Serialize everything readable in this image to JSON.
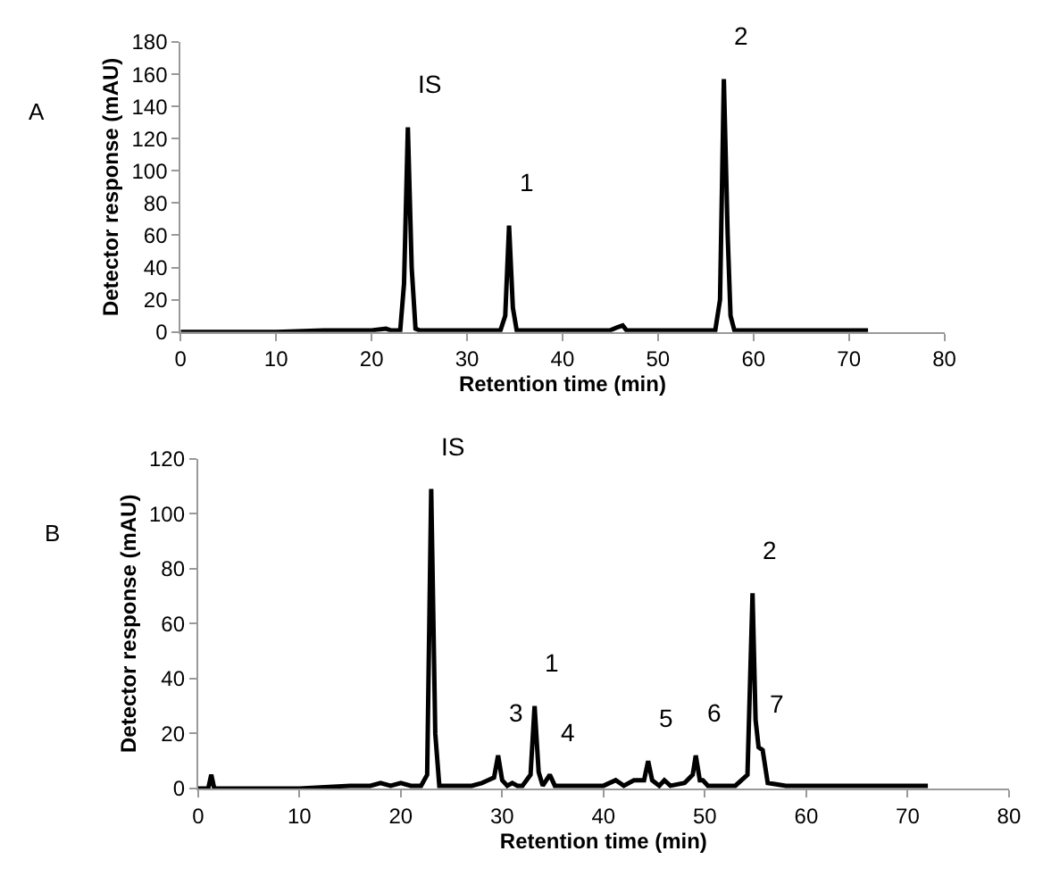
{
  "chart_data": [
    {
      "type": "line",
      "xlabel": "Retention time (min)",
      "ylabel": "Detector response (mAU)",
      "marker": "none",
      "line_style": "solid",
      "xlim": [
        0,
        80
      ],
      "xticks": [
        0,
        10,
        20,
        30,
        40,
        50,
        60,
        70,
        80
      ],
      "ylim": [
        0,
        180
      ],
      "yticks": [
        0,
        20,
        40,
        60,
        80,
        100,
        120,
        140,
        160,
        180
      ],
      "x": [
        0,
        5,
        10,
        15,
        18,
        20,
        21.5,
        22,
        23,
        23.4,
        23.8,
        24.2,
        24.6,
        25,
        27.5,
        30,
        31,
        32,
        33.5,
        34,
        34.4,
        34.8,
        35.2,
        36,
        40,
        45,
        45.8,
        46.3,
        46.7,
        47.5,
        50,
        51,
        55,
        56,
        56.5,
        56.9,
        57.3,
        57.6,
        58,
        60,
        65,
        72
      ],
      "series": [
        {
          "color": "#000000",
          "values": [
            0,
            0,
            0,
            1,
            1,
            1,
            2,
            1,
            1,
            30,
            127,
            40,
            2,
            1,
            1,
            1,
            1,
            1,
            1,
            10,
            66,
            15,
            1,
            1,
            1,
            1,
            3,
            4,
            1,
            1,
            1,
            1,
            1,
            1,
            20,
            157,
            60,
            10,
            1,
            1,
            1,
            1
          ]
        }
      ],
      "annotations": [
        "A",
        {
          "text": "IS",
          "x": 23.8,
          "y": 127
        },
        {
          "text": "1",
          "x": 34.4,
          "y": 66
        },
        {
          "text": "2",
          "x": 56.9,
          "y": 157
        }
      ]
    },
    {
      "type": "line",
      "xlabel": "Retention time (min)",
      "ylabel": "Detector response (mAU)",
      "marker": "none",
      "line_style": "solid",
      "xlim": [
        0,
        80
      ],
      "xticks": [
        0,
        10,
        20,
        30,
        40,
        50,
        60,
        70,
        80
      ],
      "ylim": [
        0,
        120
      ],
      "yticks": [
        0,
        20,
        40,
        60,
        80,
        100,
        120
      ],
      "x": [
        0,
        1,
        1.3,
        1.6,
        2.5,
        5,
        10,
        15,
        16,
        17,
        18,
        19,
        20,
        21,
        22,
        22.6,
        23,
        23.4,
        23.8,
        25,
        27,
        28,
        28.6,
        29.2,
        29.6,
        30,
        30.5,
        31,
        31.5,
        32,
        32.8,
        33.2,
        33.6,
        34,
        34.7,
        35.2,
        36,
        38,
        40,
        41.2,
        42,
        43,
        44,
        44.4,
        44.8,
        45.5,
        46,
        46.6,
        48,
        48.8,
        49.1,
        49.5,
        49.8,
        50.3,
        51,
        53,
        54.2,
        54.7,
        55,
        55.3,
        55.7,
        56.2,
        58,
        60,
        65,
        72
      ],
      "series": [
        {
          "color": "#000000",
          "values": [
            0,
            0,
            5,
            0,
            0,
            0,
            0,
            1,
            1,
            1,
            2,
            1,
            2,
            1,
            1,
            5,
            109,
            20,
            1,
            1,
            1,
            2,
            3,
            4,
            12,
            3,
            1,
            2,
            1,
            1,
            5,
            30,
            6,
            1,
            5,
            1,
            1,
            1,
            1,
            3,
            1,
            3,
            3,
            10,
            3,
            1,
            3,
            1,
            2,
            5,
            12,
            3,
            3,
            1,
            1,
            1,
            5,
            71,
            25,
            15,
            14,
            2,
            1,
            1,
            1,
            1
          ]
        }
      ],
      "annotations": [
        "B",
        {
          "text": "IS",
          "x": 23,
          "y": 109
        },
        {
          "text": "2",
          "x": 54.7,
          "y": 71
        },
        {
          "text": "1",
          "x": 33.2,
          "y": 30
        },
        {
          "text": "3",
          "x": 29.6,
          "y": 12
        },
        {
          "text": "4",
          "x": 34.7,
          "y": 5
        },
        {
          "text": "5",
          "x": 44.4,
          "y": 10
        },
        {
          "text": "6",
          "x": 49.1,
          "y": 12
        },
        {
          "text": "7",
          "x": 55.3,
          "y": 15
        }
      ]
    }
  ]
}
